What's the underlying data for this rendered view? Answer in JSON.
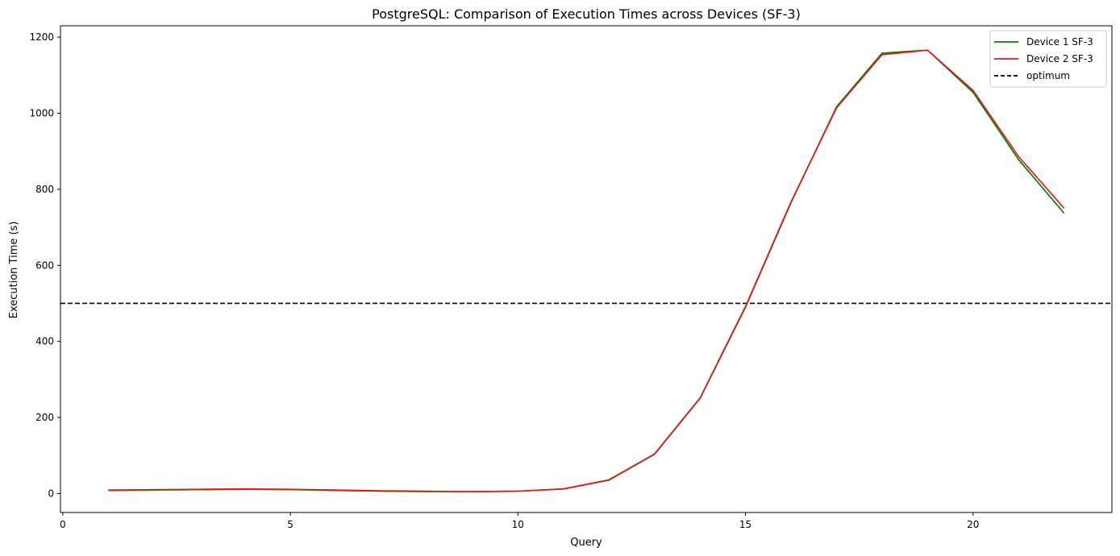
{
  "chart_data": {
    "type": "line",
    "title": "PostgreSQL: Comparison of Execution Times across Devices (SF-3)",
    "xlabel": "Query",
    "ylabel": "Execution Time (s)",
    "xlim": [
      -0.05,
      23.05
    ],
    "ylim": [
      -50,
      1230
    ],
    "xticks": [
      0,
      5,
      10,
      15,
      20
    ],
    "yticks": [
      0,
      200,
      400,
      600,
      800,
      1000,
      1200
    ],
    "x": [
      1,
      2,
      3,
      4,
      5,
      6,
      7,
      8,
      9,
      10,
      11,
      12,
      13,
      14,
      15,
      16,
      17,
      18,
      19,
      20,
      21,
      22
    ],
    "series": [
      {
        "name": "Device 1 SF-3",
        "color": "#008000",
        "values": [
          8,
          9,
          10,
          11,
          10,
          8,
          6,
          5,
          5,
          6,
          12,
          35,
          103,
          250,
          490,
          765,
          1017,
          1158,
          1166,
          1055,
          878,
          737
        ]
      },
      {
        "name": "Device 2 SF-3",
        "color": "#e41a1c",
        "values": [
          9,
          10,
          11,
          12,
          11,
          9,
          7,
          6,
          5,
          6,
          12,
          36,
          104,
          251,
          492,
          767,
          1014,
          1154,
          1166,
          1060,
          886,
          750
        ]
      }
    ],
    "reference_line": {
      "name": "optimum",
      "y": 500,
      "style": "dashed",
      "color": "#000000"
    },
    "legend": {
      "position": "top-right",
      "entries": [
        "Device 1 SF-3",
        "Device 2 SF-3",
        "optimum"
      ]
    },
    "grid": false
  }
}
